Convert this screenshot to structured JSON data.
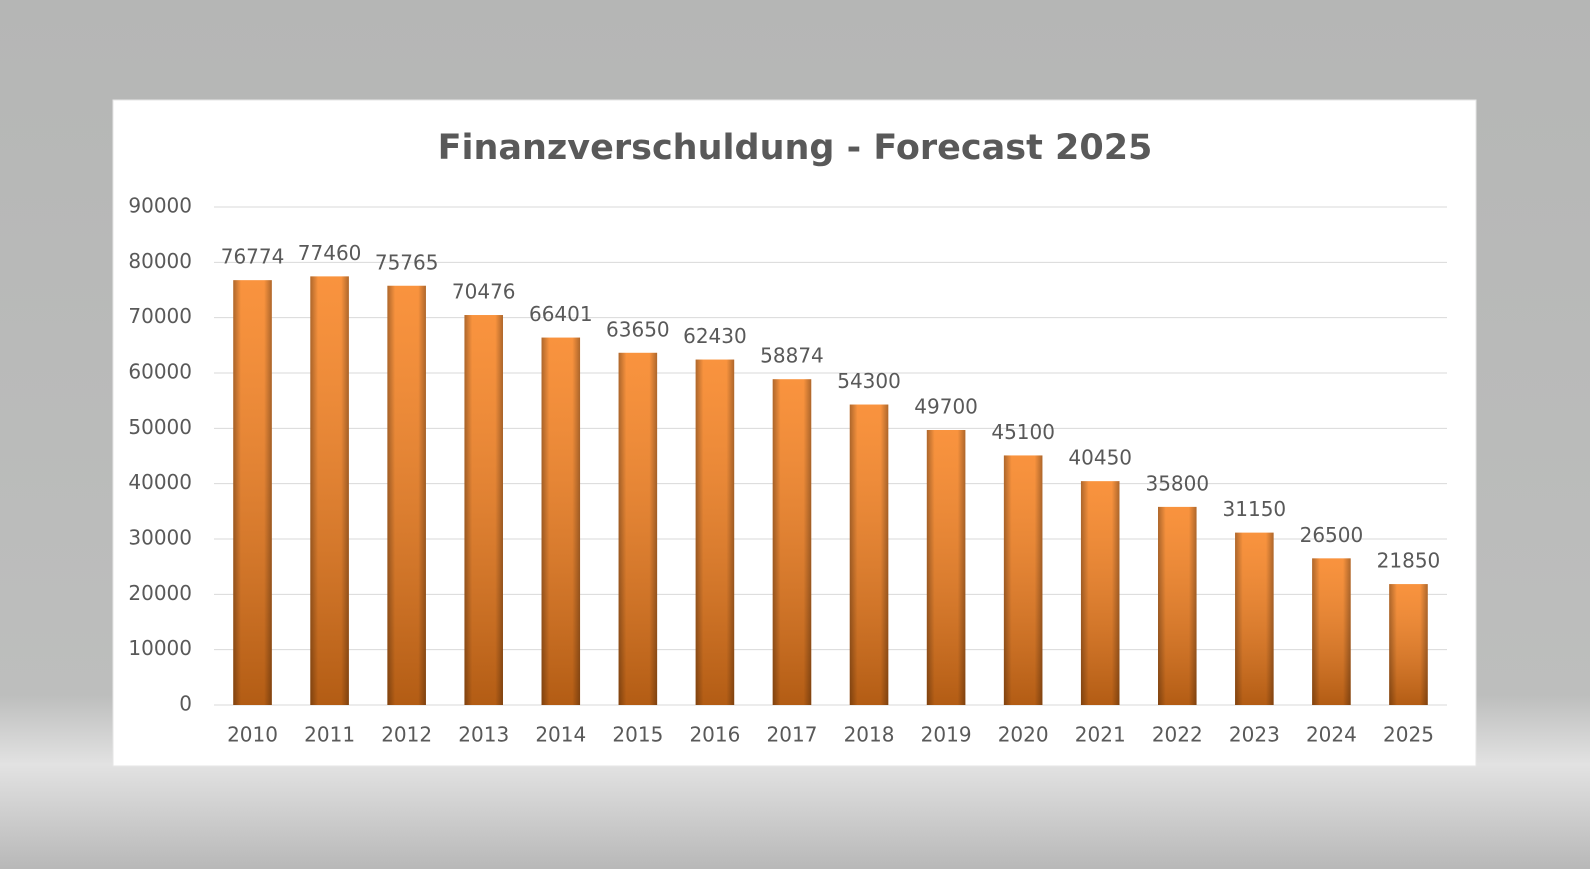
{
  "chart_data": {
    "type": "bar",
    "title": "Finanzverschuldung - Forecast 2025",
    "categories": [
      "2010",
      "2011",
      "2012",
      "2013",
      "2014",
      "2015",
      "2016",
      "2017",
      "2018",
      "2019",
      "2020",
      "2021",
      "2022",
      "2023",
      "2024",
      "2025"
    ],
    "values": [
      76774,
      77460,
      75765,
      70476,
      66401,
      63650,
      62430,
      58874,
      54300,
      49700,
      45100,
      40450,
      35800,
      31150,
      26500,
      21850
    ],
    "color": "#f8801c",
    "ylim": [
      0,
      90000
    ],
    "yticks": [
      0,
      10000,
      20000,
      30000,
      40000,
      50000,
      60000,
      70000,
      80000,
      90000
    ],
    "grid": true
  }
}
